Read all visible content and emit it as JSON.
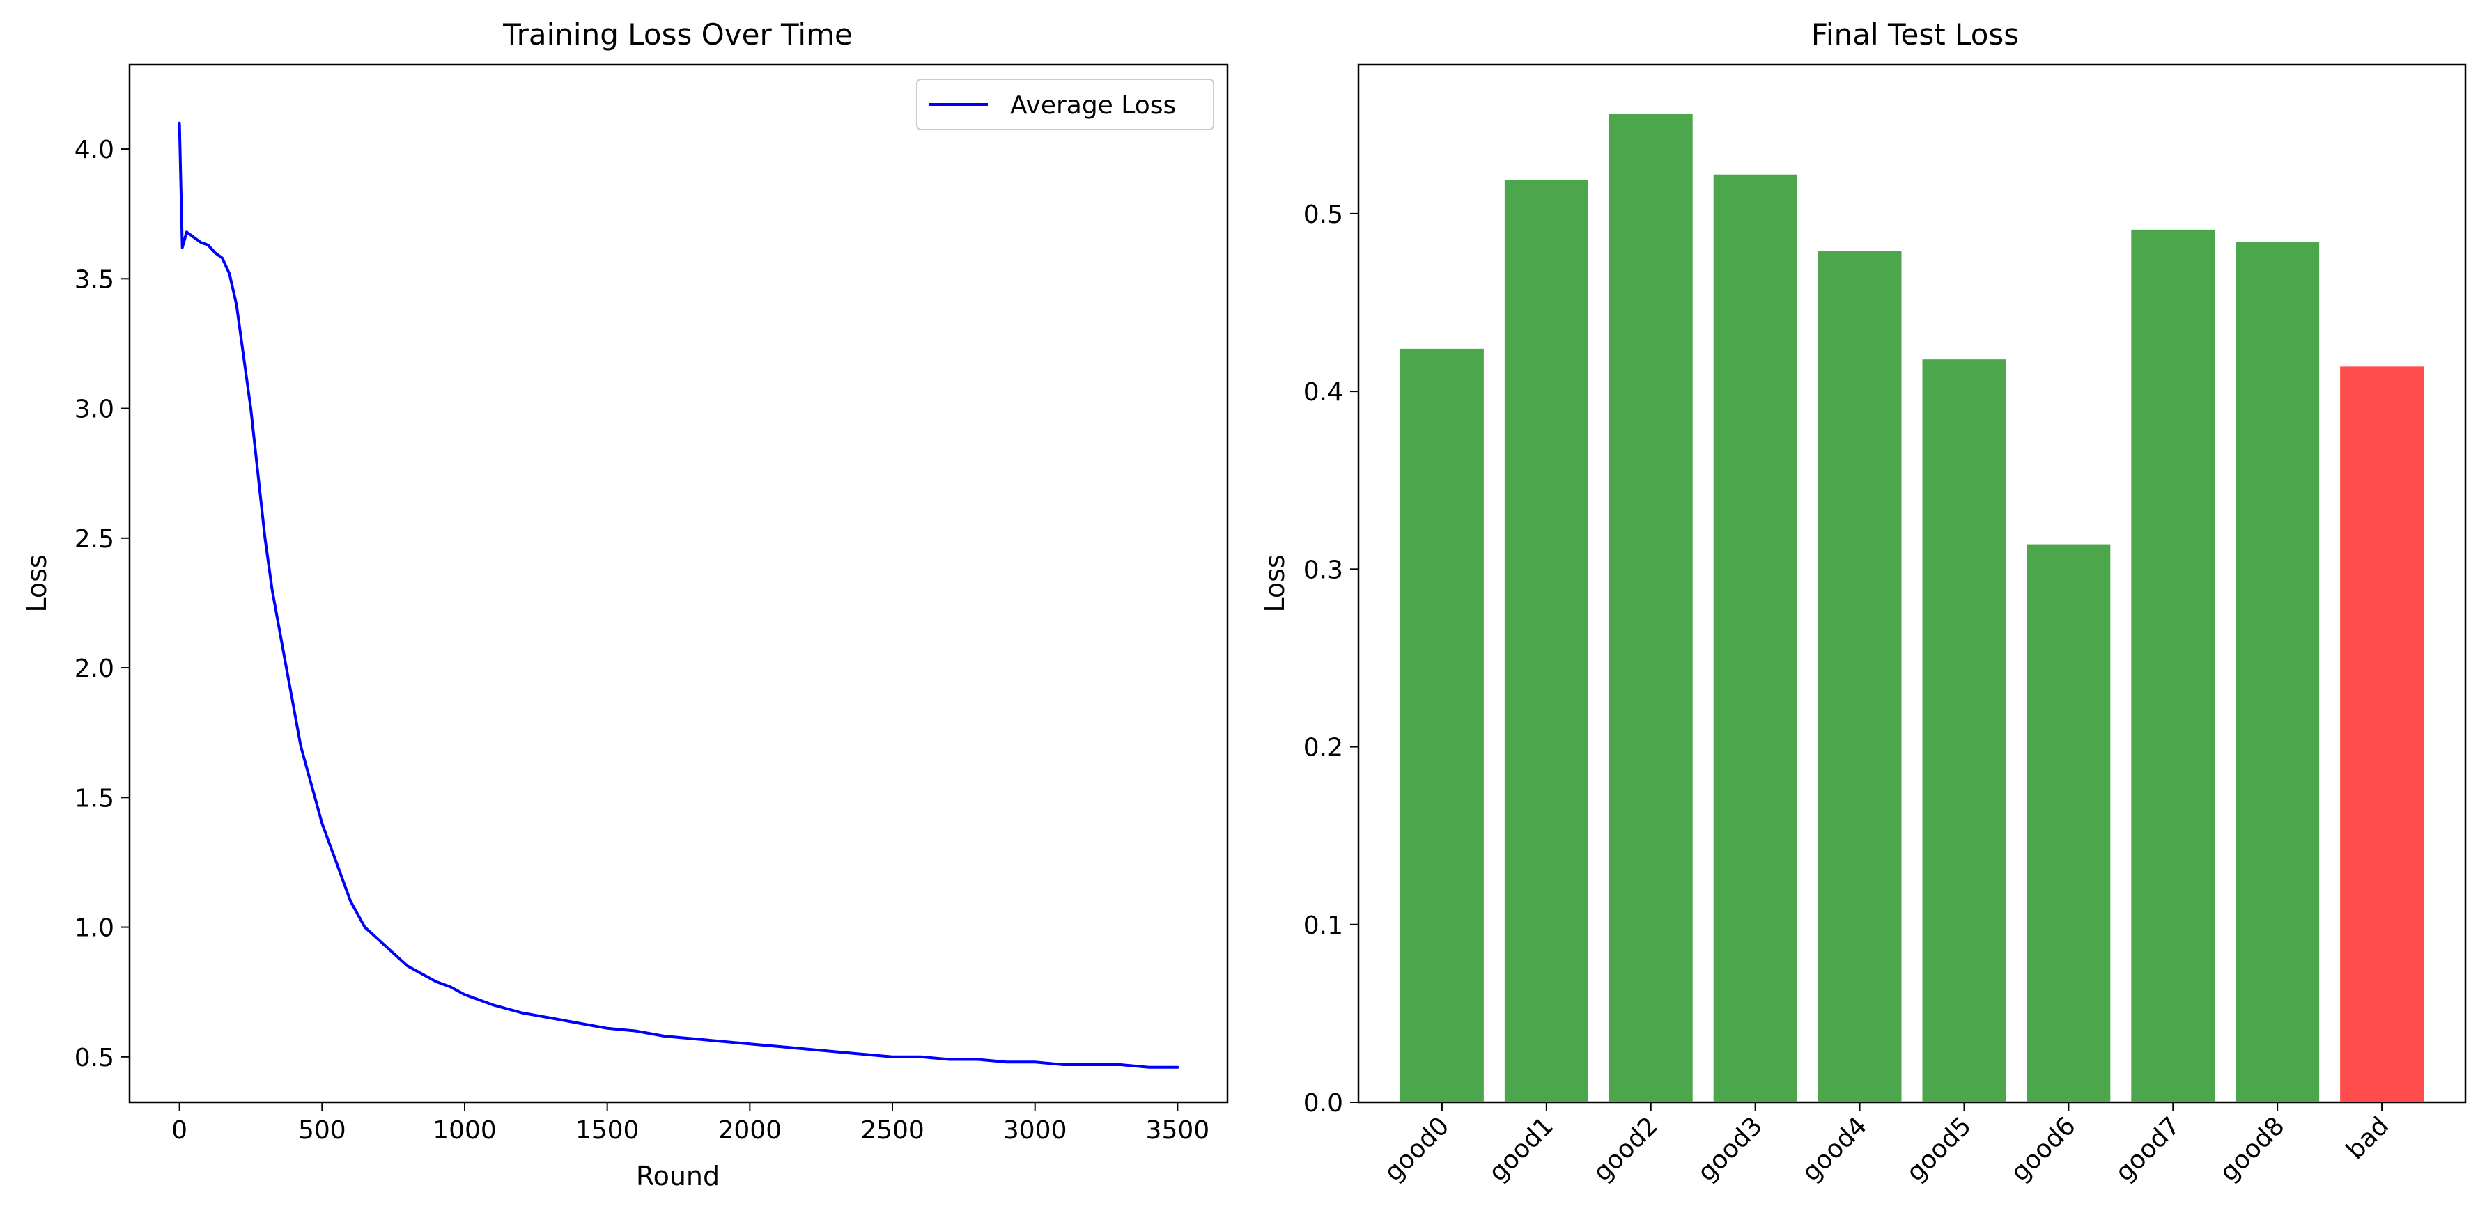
{
  "chart_data": [
    {
      "type": "line",
      "title": "Training Loss Over Time",
      "xlabel": "Round",
      "ylabel": "Loss",
      "xlim": [
        -175,
        3675
      ],
      "ylim": [
        0.325,
        4.325
      ],
      "xticks": [
        0,
        500,
        1000,
        1500,
        2000,
        2500,
        3000,
        3500
      ],
      "yticks": [
        0.5,
        1.0,
        1.5,
        2.0,
        2.5,
        3.0,
        3.5,
        4.0
      ],
      "ytick_labels": [
        "0.5",
        "1.0",
        "1.5",
        "2.0",
        "2.5",
        "3.0",
        "3.5",
        "4.0"
      ],
      "legend_position": "top-right",
      "color": "#0000ff",
      "series": [
        {
          "name": "Average Loss",
          "x": [
            0,
            10,
            25,
            50,
            75,
            100,
            125,
            150,
            175,
            200,
            225,
            250,
            275,
            300,
            325,
            350,
            375,
            400,
            425,
            450,
            475,
            500,
            550,
            600,
            650,
            700,
            750,
            800,
            850,
            900,
            950,
            1000,
            1100,
            1200,
            1300,
            1400,
            1500,
            1600,
            1700,
            1800,
            1900,
            2000,
            2100,
            2200,
            2300,
            2400,
            2500,
            2600,
            2700,
            2800,
            2900,
            3000,
            3100,
            3200,
            3300,
            3400,
            3500
          ],
          "y": [
            4.1,
            3.62,
            3.68,
            3.66,
            3.64,
            3.63,
            3.6,
            3.58,
            3.52,
            3.4,
            3.2,
            3.0,
            2.75,
            2.5,
            2.3,
            2.15,
            2.0,
            1.85,
            1.7,
            1.6,
            1.5,
            1.4,
            1.25,
            1.1,
            1.0,
            0.95,
            0.9,
            0.85,
            0.82,
            0.79,
            0.77,
            0.74,
            0.7,
            0.67,
            0.65,
            0.63,
            0.61,
            0.6,
            0.58,
            0.57,
            0.56,
            0.55,
            0.54,
            0.53,
            0.52,
            0.51,
            0.5,
            0.5,
            0.49,
            0.49,
            0.48,
            0.48,
            0.47,
            0.47,
            0.47,
            0.46,
            0.46
          ]
        }
      ]
    },
    {
      "type": "bar",
      "title": "Final Test Loss",
      "xlabel": "",
      "ylabel": "Loss",
      "ylim": [
        0,
        0.5838
      ],
      "yticks": [
        0.0,
        0.1,
        0.2,
        0.3,
        0.4,
        0.5
      ],
      "ytick_labels": [
        "0.0",
        "0.1",
        "0.2",
        "0.3",
        "0.4",
        "0.5"
      ],
      "categories": [
        "good0",
        "good1",
        "good2",
        "good3",
        "good4",
        "good5",
        "good6",
        "good7",
        "good8",
        "bad"
      ],
      "values": [
        0.424,
        0.519,
        0.556,
        0.522,
        0.479,
        0.418,
        0.314,
        0.491,
        0.484,
        0.414
      ],
      "colors": [
        "#4ca64c",
        "#4ca64c",
        "#4ca64c",
        "#4ca64c",
        "#4ca64c",
        "#4ca64c",
        "#4ca64c",
        "#4ca64c",
        "#4ca64c",
        "#ff4c4c"
      ]
    }
  ]
}
